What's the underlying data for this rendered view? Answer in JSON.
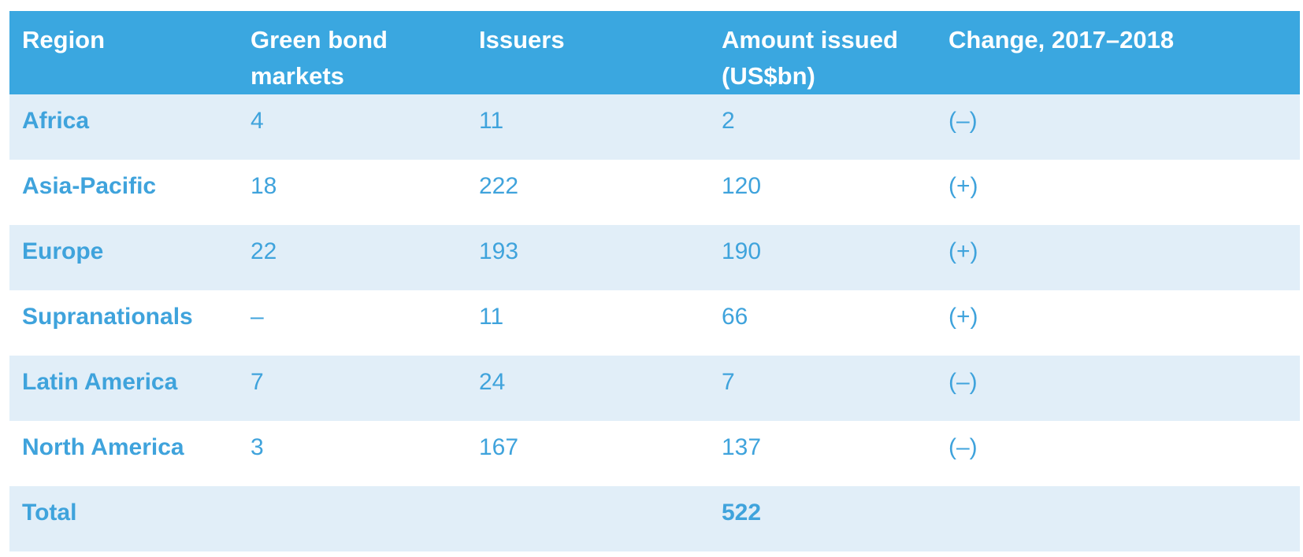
{
  "colors": {
    "header_bg": "#3AA7E0",
    "header_text": "#FFFFFF",
    "row_alt_bg": "#E1EEF8",
    "text_blue": "#3FA3DC"
  },
  "table": {
    "columns": [
      "Region",
      "Green bond markets",
      "Issuers",
      "Amount issued (US$bn)",
      "Change, 2017–2018"
    ],
    "rows": [
      {
        "region": "Africa",
        "markets": "4",
        "issuers": "11",
        "amount": "2",
        "change": "(–)"
      },
      {
        "region": "Asia-Pacific",
        "markets": "18",
        "issuers": "222",
        "amount": "120",
        "change": "(+)"
      },
      {
        "region": "Europe",
        "markets": "22",
        "issuers": "193",
        "amount": "190",
        "change": "(+)"
      },
      {
        "region": "Supranationals",
        "markets": "–",
        "issuers": "11",
        "amount": "66",
        "change": "(+)"
      },
      {
        "region": "Latin America",
        "markets": "7",
        "issuers": "24",
        "amount": "7",
        "change": "(–)"
      },
      {
        "region": "North America",
        "markets": "3",
        "issuers": "167",
        "amount": "137",
        "change": "(–)"
      },
      {
        "region": "Total",
        "markets": "",
        "issuers": "",
        "amount": "522",
        "change": ""
      }
    ]
  },
  "chart_data": {
    "type": "table",
    "columns": [
      "Region",
      "Green bond markets",
      "Issuers",
      "Amount issued (US$bn)",
      "Change, 2017–2018"
    ],
    "rows": [
      [
        "Africa",
        4,
        11,
        2,
        "(–)"
      ],
      [
        "Asia-Pacific",
        18,
        222,
        120,
        "(+)"
      ],
      [
        "Europe",
        22,
        193,
        190,
        "(+)"
      ],
      [
        "Supranationals",
        "–",
        11,
        66,
        "(+)"
      ],
      [
        "Latin America",
        7,
        24,
        7,
        "(–)"
      ],
      [
        "North America",
        3,
        167,
        137,
        "(–)"
      ],
      [
        "Total",
        "",
        "",
        522,
        ""
      ]
    ],
    "layout_hints": {
      "header_background": "#3AA7E0",
      "alternating_row_background": "#E1EEF8",
      "text_color": "#3FA3DC",
      "region_column_bold": true,
      "total_row_bold": true
    }
  }
}
